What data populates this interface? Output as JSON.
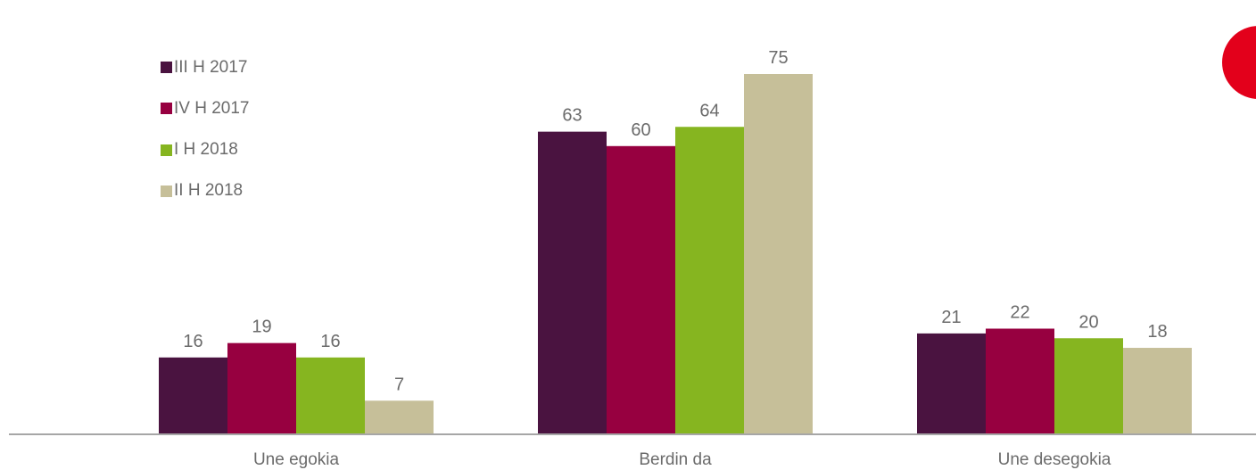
{
  "chart_data": {
    "type": "bar",
    "categories": [
      "Une egokia",
      "Berdin da",
      "Une desegokia"
    ],
    "series": [
      {
        "name": "III H 2017",
        "color": "#4a1340",
        "values": [
          16,
          63,
          21
        ]
      },
      {
        "name": "IV H 2017",
        "color": "#970040",
        "values": [
          19,
          60,
          22
        ]
      },
      {
        "name": "I H 2018",
        "color": "#86b520",
        "values": [
          16,
          64,
          20
        ]
      },
      {
        "name": "II H 2018",
        "color": "#c6bf99",
        "values": [
          7,
          75,
          18
        ]
      }
    ],
    "ylim": [
      0,
      75
    ],
    "grid": false,
    "legend_position": "top-left",
    "data_labels": true
  },
  "colors": {
    "label": "#6b6b6b",
    "axis": "#a6a6a6",
    "corner_mark": "#e3001b"
  }
}
